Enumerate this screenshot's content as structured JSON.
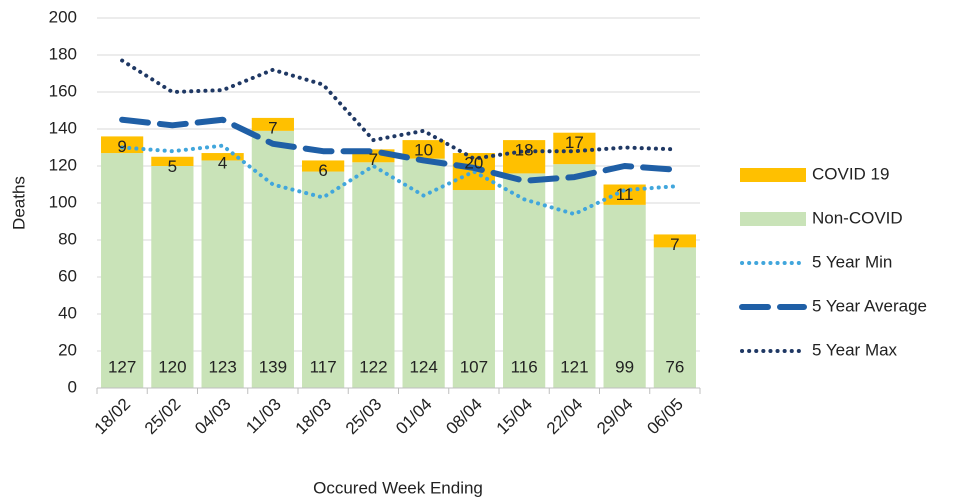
{
  "chart_data": {
    "type": "bar",
    "stacked": true,
    "x_label": "Occured Week Ending",
    "y_label": "Deaths",
    "categories": [
      "18/02",
      "25/02",
      "04/03",
      "11/03",
      "18/03",
      "25/03",
      "01/04",
      "08/04",
      "15/04",
      "22/04",
      "29/04",
      "06/05"
    ],
    "series": [
      {
        "name": "Non-COVID",
        "type": "bar",
        "color": "#c9e3b8",
        "label_position": "bottom",
        "values": [
          127,
          120,
          123,
          139,
          117,
          122,
          124,
          107,
          116,
          121,
          99,
          76
        ]
      },
      {
        "name": "COVID 19",
        "type": "bar",
        "color": "#ffc000",
        "label_position": "top",
        "values": [
          9,
          5,
          4,
          7,
          6,
          7,
          10,
          20,
          18,
          17,
          11,
          7
        ]
      },
      {
        "name": "5 Year Min",
        "type": "line",
        "color": "#41a6dc",
        "line_style": "dotted",
        "values": [
          130,
          128,
          131,
          110,
          103,
          120,
          104,
          117,
          102,
          94,
          107,
          109
        ]
      },
      {
        "name": "5 Year Average",
        "type": "line",
        "color": "#1f5fa6",
        "line_style": "dashed",
        "values": [
          145,
          142,
          145,
          132,
          128,
          128,
          123,
          119,
          112,
          114,
          120,
          118
        ]
      },
      {
        "name": "5 Year Max",
        "type": "line",
        "color": "#1f3864",
        "line_style": "dotted",
        "values": [
          177,
          160,
          161,
          172,
          164,
          134,
          139,
          124,
          128,
          128,
          130,
          129
        ]
      }
    ],
    "legend_order": [
      1,
      0,
      2,
      3,
      4
    ],
    "legend": "right",
    "ylim": [
      0,
      200
    ],
    "yticks": [
      0,
      20,
      40,
      60,
      80,
      100,
      120,
      140,
      160,
      180,
      200
    ],
    "grid": true
  }
}
